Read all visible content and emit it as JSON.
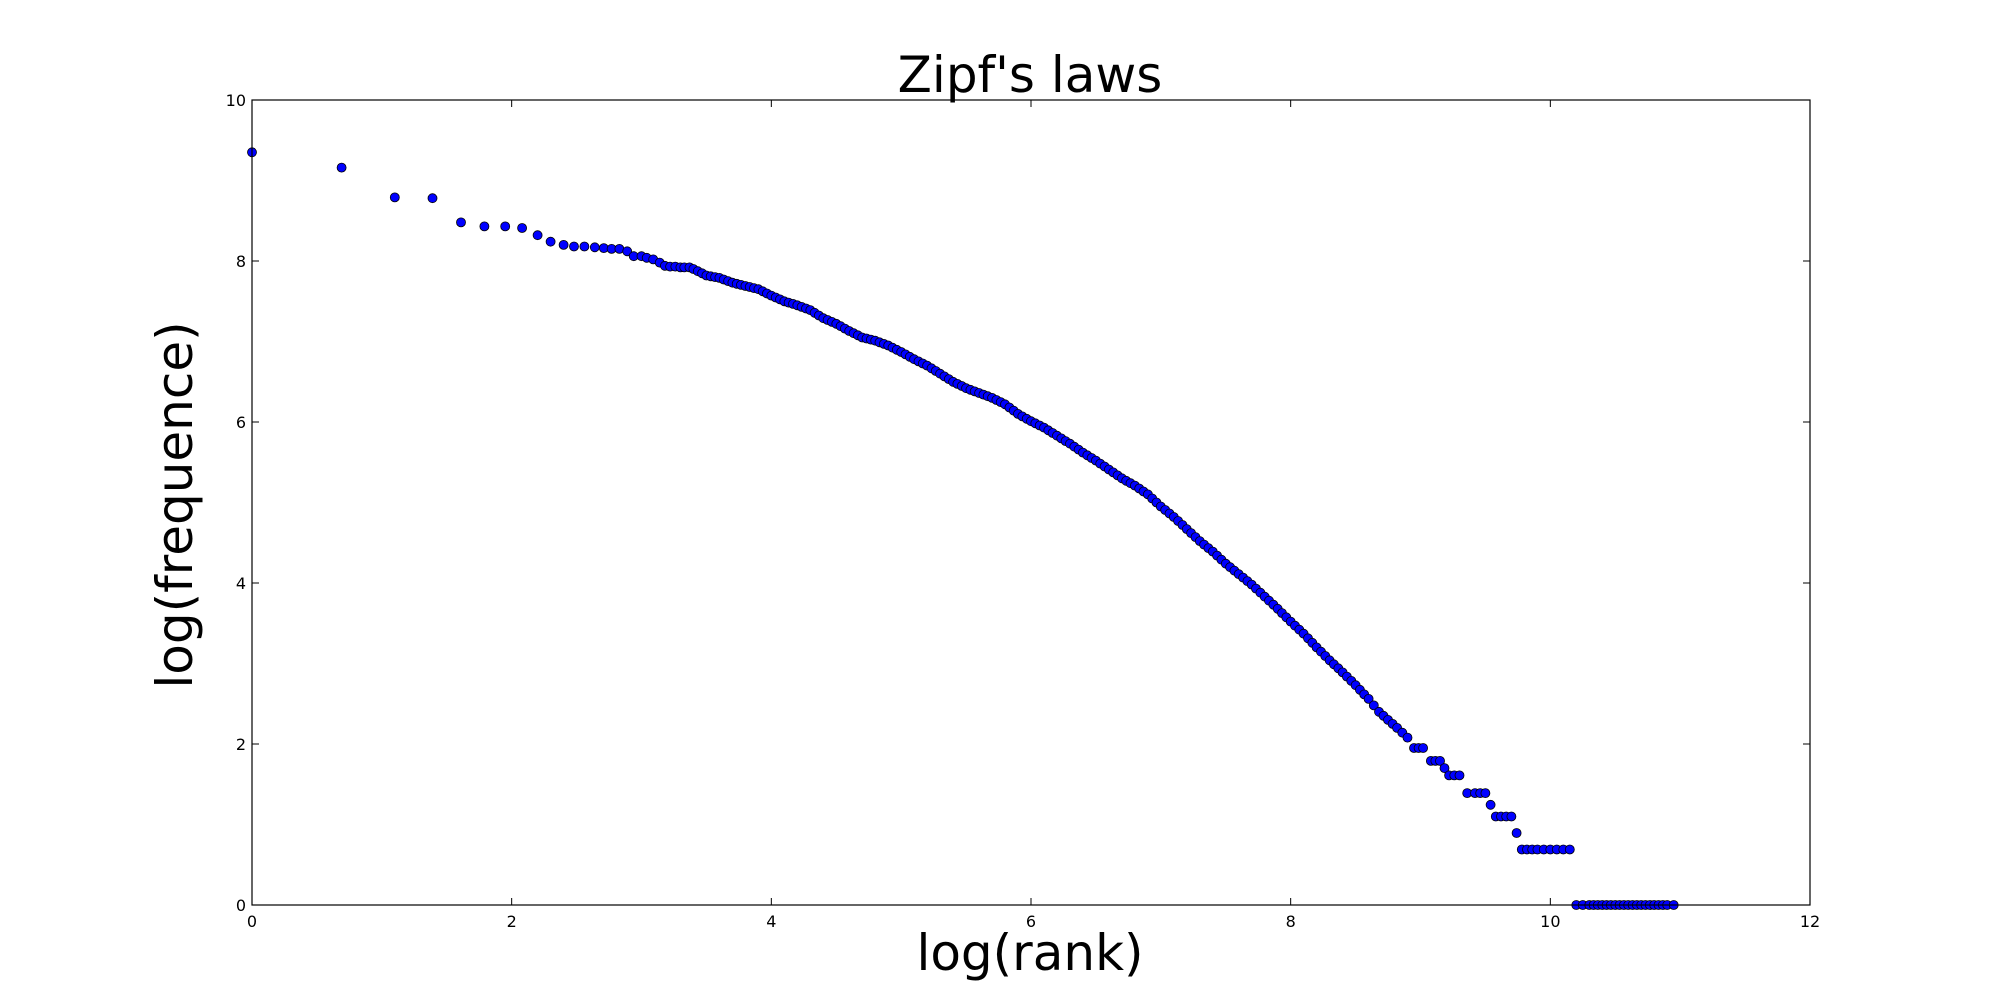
{
  "chart_data": {
    "type": "scatter",
    "title": "Zipf's laws",
    "xlabel": "log(rank)",
    "ylabel": "log(frequence)",
    "xlim": [
      0,
      12
    ],
    "ylim": [
      0,
      10
    ],
    "xticks": [
      "0",
      "2",
      "4",
      "6",
      "8",
      "10",
      "12"
    ],
    "yticks": [
      "0",
      "2",
      "4",
      "6",
      "8",
      "10"
    ],
    "grid": false,
    "marker_color": "#0000ff",
    "marker_edge_color": "#000000",
    "x": [
      0.0,
      0.69,
      1.1,
      1.39,
      1.61,
      1.79,
      1.95,
      2.08,
      2.2,
      2.3,
      2.4,
      2.48,
      2.56,
      2.64,
      2.71,
      2.77,
      2.83,
      2.89,
      2.94,
      3.0,
      3.04,
      3.09,
      3.14,
      3.18,
      3.22,
      3.26,
      3.3,
      3.33,
      3.37,
      3.4,
      3.5,
      3.6,
      3.7,
      3.8,
      3.9,
      4.0,
      4.1,
      4.2,
      4.3,
      4.4,
      4.5,
      4.6,
      4.7,
      4.8,
      4.9,
      5.0,
      5.1,
      5.2,
      5.3,
      5.4,
      5.5,
      5.6,
      5.7,
      5.8,
      5.9,
      6.0,
      6.1,
      6.2,
      6.3,
      6.4,
      6.5,
      6.6,
      6.7,
      6.8,
      6.9,
      7.0,
      7.1,
      7.2,
      7.3,
      7.4,
      7.5,
      7.6,
      7.7,
      7.8,
      7.9,
      8.0,
      8.1,
      8.2,
      8.3,
      8.4,
      8.5,
      8.6,
      8.68,
      8.75,
      8.82,
      8.9,
      8.95,
      9.02,
      9.08,
      9.15,
      9.22,
      9.3,
      9.36,
      9.42,
      9.5,
      9.58,
      9.66,
      9.7,
      9.78,
      9.86,
      9.9,
      9.95,
      10.0,
      10.05,
      10.1,
      10.15,
      10.2,
      10.25,
      10.3,
      10.4,
      10.5,
      10.6,
      10.7,
      10.8,
      10.9,
      10.95
    ],
    "y": [
      9.35,
      9.16,
      8.79,
      8.78,
      8.48,
      8.43,
      8.43,
      8.41,
      8.32,
      8.24,
      8.2,
      8.18,
      8.18,
      8.17,
      8.16,
      8.15,
      8.15,
      8.12,
      8.06,
      8.06,
      8.04,
      8.02,
      7.98,
      7.94,
      7.93,
      7.93,
      7.92,
      7.92,
      7.92,
      7.9,
      7.82,
      7.79,
      7.73,
      7.69,
      7.65,
      7.57,
      7.5,
      7.45,
      7.39,
      7.29,
      7.22,
      7.13,
      7.05,
      7.01,
      6.95,
      6.87,
      6.78,
      6.7,
      6.6,
      6.5,
      6.42,
      6.36,
      6.3,
      6.22,
      6.1,
      6.01,
      5.93,
      5.83,
      5.73,
      5.62,
      5.52,
      5.41,
      5.3,
      5.21,
      5.1,
      4.95,
      4.82,
      4.67,
      4.52,
      4.39,
      4.24,
      4.11,
      3.98,
      3.83,
      3.68,
      3.52,
      3.37,
      3.2,
      3.04,
      2.89,
      2.73,
      2.56,
      2.4,
      2.3,
      2.2,
      2.08,
      1.95,
      1.95,
      1.79,
      1.79,
      1.61,
      1.61,
      1.39,
      1.39,
      1.39,
      1.1,
      1.1,
      1.1,
      0.69,
      0.69,
      0.69,
      0.69,
      0.69,
      0.69,
      0.69,
      0.69,
      0.0,
      0.0,
      0.0,
      0.0,
      0.0,
      0.0,
      0.0,
      0.0,
      0.0,
      0.0
    ]
  }
}
